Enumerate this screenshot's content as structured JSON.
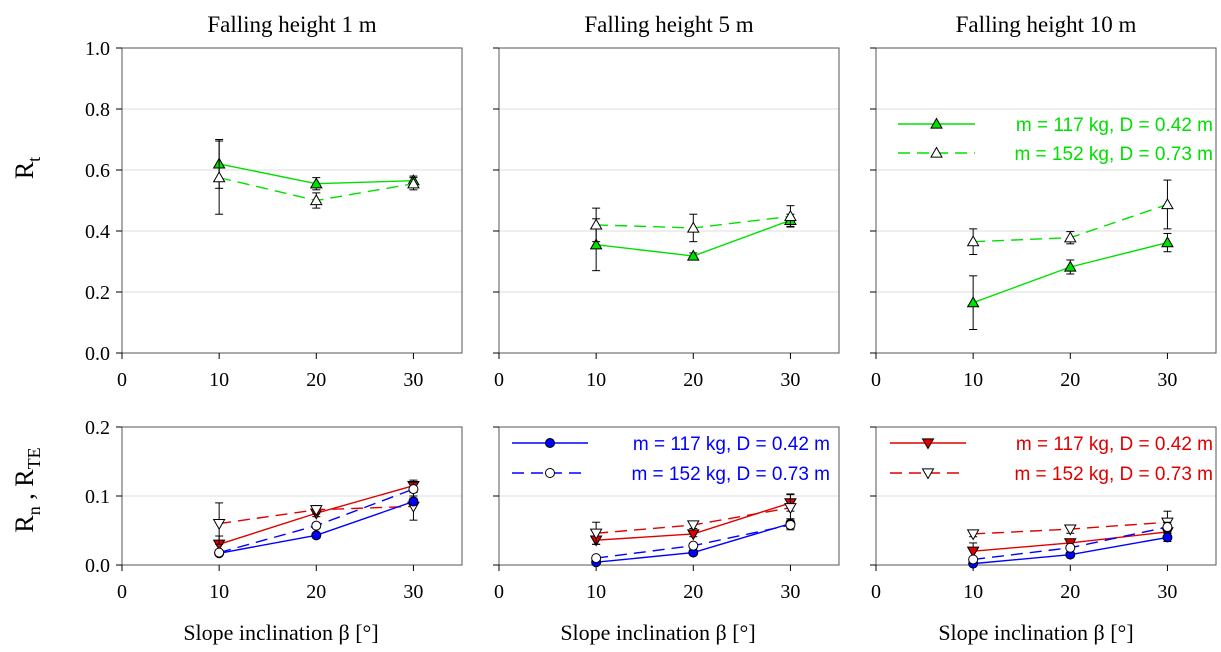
{
  "colors": {
    "green": "#00e000",
    "blue": "#0000ff",
    "red": "#e00000",
    "frame": "#555555",
    "grid": "#dcdcdc",
    "ink": "#000000"
  },
  "figure": {
    "xlabel": "Slope inclination  β  [°]",
    "top_ylabel": {
      "main": "R",
      "sub": "t"
    },
    "bottom_ylabel": {
      "n_main": "R",
      "n_sub": "n",
      "sep": " , ",
      "te_main": "R",
      "te_sub": "TE"
    }
  },
  "chart_data": [
    {
      "panel": "top-1",
      "type": "line",
      "title": "Falling height 1 m",
      "xlim": [
        0,
        35
      ],
      "ylim": [
        0,
        1.0
      ],
      "xticks": [
        0,
        10,
        20,
        30
      ],
      "yticks": [
        "0.0",
        "0.2",
        "0.4",
        "0.6",
        "0.8",
        "1.0"
      ],
      "ytick_values": [
        0,
        0.2,
        0.4,
        0.6,
        0.8,
        1.0
      ],
      "show_yticklabels": true,
      "grid": true,
      "legend": null,
      "series": [
        {
          "color": "green",
          "dash": false,
          "marker": "triangle-up",
          "filled": true,
          "x": [
            10,
            20,
            30
          ],
          "y": [
            0.62,
            0.555,
            0.565
          ],
          "err": [
            0.08,
            0.02,
            0.015
          ]
        },
        {
          "color": "green",
          "dash": true,
          "marker": "triangle-up",
          "filled": false,
          "x": [
            10,
            20,
            30
          ],
          "y": [
            0.575,
            0.5,
            0.555
          ],
          "err": [
            0.12,
            0.025,
            0.02
          ]
        }
      ]
    },
    {
      "panel": "top-2",
      "type": "line",
      "title": "Falling height 5 m",
      "xlim": [
        0,
        35
      ],
      "ylim": [
        0,
        1.0
      ],
      "xticks": [
        0,
        10,
        20,
        30
      ],
      "yticks": [],
      "ytick_values": [
        0,
        0.2,
        0.4,
        0.6,
        0.8,
        1.0
      ],
      "show_yticklabels": false,
      "grid": true,
      "legend": null,
      "series": [
        {
          "color": "green",
          "dash": false,
          "marker": "triangle-up",
          "filled": true,
          "x": [
            10,
            20,
            30
          ],
          "y": [
            0.355,
            0.318,
            0.435
          ],
          "err": [
            0.085,
            0.01,
            0.02
          ]
        },
        {
          "color": "green",
          "dash": true,
          "marker": "triangle-up",
          "filled": false,
          "x": [
            10,
            20,
            30
          ],
          "y": [
            0.42,
            0.41,
            0.448
          ],
          "err": [
            0.055,
            0.045,
            0.035
          ]
        }
      ]
    },
    {
      "panel": "top-3",
      "type": "line",
      "title": "Falling height 10 m",
      "xlim": [
        0,
        35
      ],
      "ylim": [
        0,
        1.0
      ],
      "xticks": [
        0,
        10,
        20,
        30
      ],
      "yticks": [],
      "ytick_values": [
        0,
        0.2,
        0.4,
        0.6,
        0.8,
        1.0
      ],
      "show_yticklabels": false,
      "grid": true,
      "legend": "top-right",
      "series": [
        {
          "name": "m = 117 kg, D = 0.42 m",
          "color": "green",
          "dash": false,
          "marker": "triangle-up",
          "filled": true,
          "x": [
            10,
            20,
            30
          ],
          "y": [
            0.165,
            0.282,
            0.362
          ],
          "err": [
            0.088,
            0.023,
            0.03
          ]
        },
        {
          "name": "m = 152 kg, D = 0.73 m",
          "color": "green",
          "dash": true,
          "marker": "triangle-up",
          "filled": false,
          "x": [
            10,
            20,
            30
          ],
          "y": [
            0.365,
            0.378,
            0.487
          ],
          "err": [
            0.042,
            0.02,
            0.08
          ]
        }
      ]
    },
    {
      "panel": "bottom-1",
      "type": "line",
      "title": "",
      "xlim": [
        0,
        35
      ],
      "ylim": [
        0,
        0.2
      ],
      "xticks": [
        0,
        10,
        20,
        30
      ],
      "yticks": [
        "0.0",
        "0.1",
        "0.2"
      ],
      "ytick_values": [
        0,
        0.1,
        0.2
      ],
      "show_yticklabels": true,
      "grid": true,
      "legend": null,
      "series": [
        {
          "color": "red",
          "dash": false,
          "marker": "triangle-down",
          "filled": true,
          "x": [
            10,
            20,
            30
          ],
          "y": [
            0.03,
            0.075,
            0.115
          ],
          "err": [
            0.012,
            0.005,
            0.008
          ]
        },
        {
          "color": "red",
          "dash": true,
          "marker": "triangle-down",
          "filled": false,
          "x": [
            10,
            20,
            30
          ],
          "y": [
            0.06,
            0.08,
            0.085
          ],
          "err": [
            0.03,
            0.006,
            0.02
          ]
        },
        {
          "color": "blue",
          "dash": false,
          "marker": "circle",
          "filled": true,
          "x": [
            10,
            20,
            30
          ],
          "y": [
            0.017,
            0.043,
            0.092
          ],
          "err": [
            0.003,
            0.003,
            0.005
          ]
        },
        {
          "color": "blue",
          "dash": true,
          "marker": "circle",
          "filled": false,
          "x": [
            10,
            20,
            30
          ],
          "y": [
            0.018,
            0.057,
            0.11
          ],
          "err": [
            0.003,
            0.004,
            0.01
          ]
        }
      ]
    },
    {
      "panel": "bottom-2",
      "type": "line",
      "title": "",
      "xlim": [
        0,
        35
      ],
      "ylim": [
        0,
        0.2
      ],
      "xticks": [
        0,
        10,
        20,
        30
      ],
      "yticks": [],
      "ytick_values": [
        0,
        0.1,
        0.2
      ],
      "show_yticklabels": false,
      "grid": true,
      "legend": "top",
      "series": [
        {
          "color": "red",
          "dash": false,
          "marker": "triangle-down",
          "filled": true,
          "x": [
            10,
            20,
            30
          ],
          "y": [
            0.036,
            0.045,
            0.09
          ],
          "err": [
            0.006,
            0.004,
            0.012
          ]
        },
        {
          "color": "red",
          "dash": true,
          "marker": "triangle-down",
          "filled": false,
          "x": [
            10,
            20,
            30
          ],
          "y": [
            0.046,
            0.058,
            0.083
          ],
          "err": [
            0.016,
            0.005,
            0.02
          ]
        },
        {
          "name": "m = 117 kg, D = 0.42 m",
          "color": "blue",
          "dash": false,
          "marker": "circle",
          "filled": true,
          "x": [
            10,
            20,
            30
          ],
          "y": [
            0.004,
            0.018,
            0.06
          ],
          "err": [
            0.002,
            0.003,
            0.007
          ]
        },
        {
          "name": "m = 152 kg, D = 0.73 m",
          "color": "blue",
          "dash": true,
          "marker": "circle",
          "filled": false,
          "x": [
            10,
            20,
            30
          ],
          "y": [
            0.01,
            0.028,
            0.058
          ],
          "err": [
            0.002,
            0.003,
            0.007
          ]
        }
      ]
    },
    {
      "panel": "bottom-3",
      "type": "line",
      "title": "",
      "xlim": [
        0,
        35
      ],
      "ylim": [
        0,
        0.2
      ],
      "xticks": [
        0,
        10,
        20,
        30
      ],
      "yticks": [],
      "ytick_values": [
        0,
        0.1,
        0.2
      ],
      "show_yticklabels": false,
      "grid": true,
      "legend": "top",
      "series": [
        {
          "name": "m = 117 kg, D = 0.42 m",
          "color": "red",
          "dash": false,
          "marker": "triangle-down",
          "filled": true,
          "x": [
            10,
            20,
            30
          ],
          "y": [
            0.02,
            0.032,
            0.048
          ],
          "err": [
            0.012,
            0.004,
            0.006
          ]
        },
        {
          "name": "m = 152 kg, D = 0.73 m",
          "color": "red",
          "dash": true,
          "marker": "triangle-down",
          "filled": false,
          "x": [
            10,
            20,
            30
          ],
          "y": [
            0.045,
            0.052,
            0.062
          ],
          "err": [
            0.004,
            0.006,
            0.016
          ]
        },
        {
          "color": "blue",
          "dash": false,
          "marker": "circle",
          "filled": true,
          "x": [
            10,
            20,
            30
          ],
          "y": [
            0.002,
            0.015,
            0.04
          ],
          "err": [
            0.002,
            0.003,
            0.006
          ]
        },
        {
          "color": "blue",
          "dash": true,
          "marker": "circle",
          "filled": false,
          "x": [
            10,
            20,
            30
          ],
          "y": [
            0.008,
            0.025,
            0.055
          ],
          "err": [
            0.002,
            0.003,
            0.007
          ]
        }
      ]
    }
  ]
}
